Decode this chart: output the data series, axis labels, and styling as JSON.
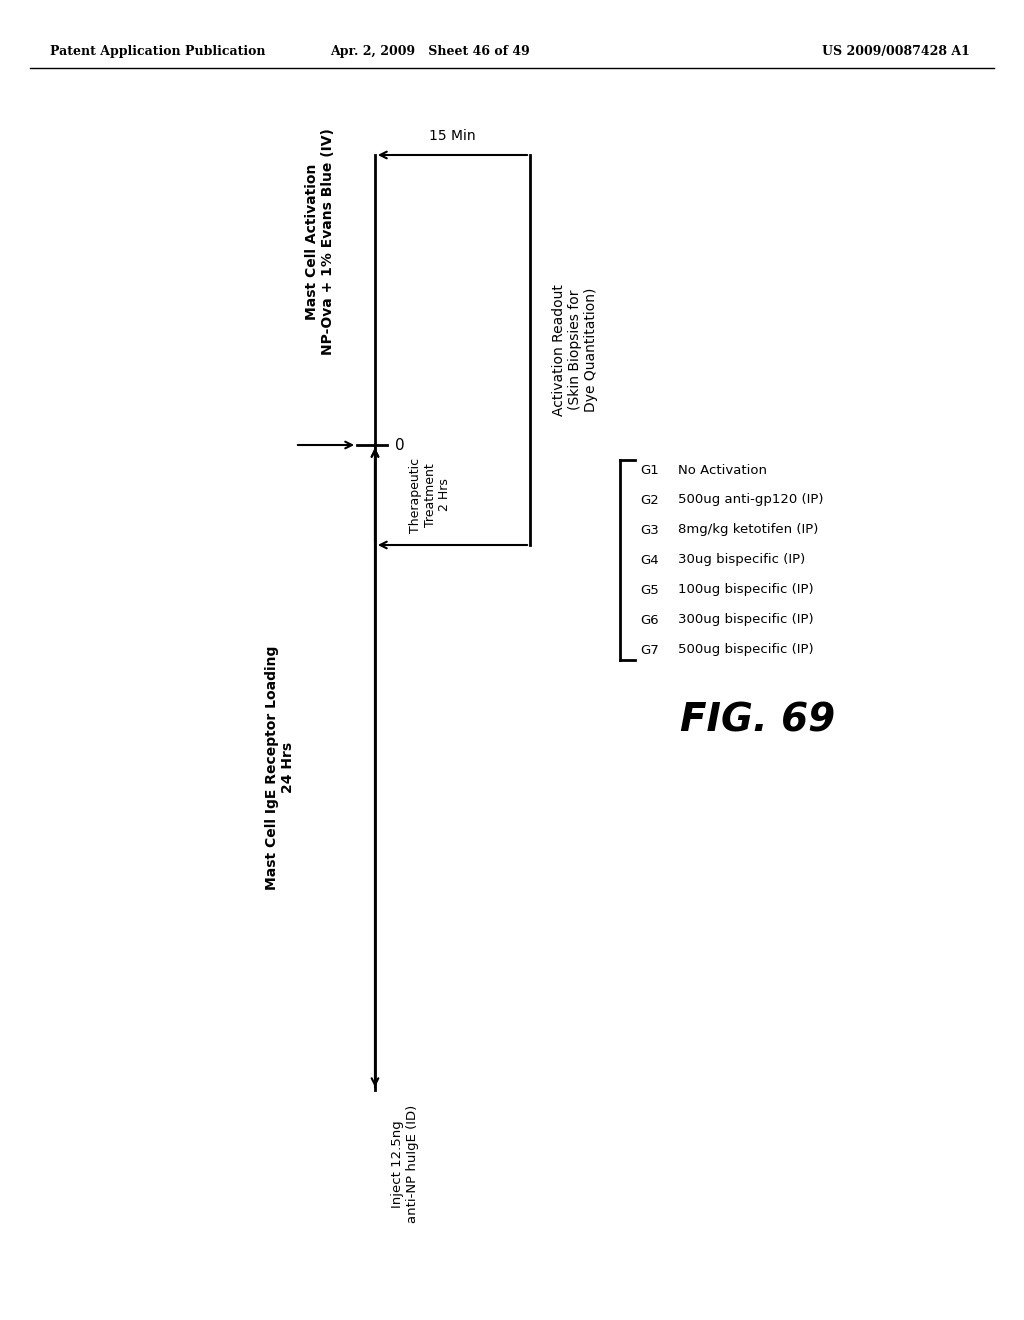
{
  "header_left": "Patent Application Publication",
  "header_mid": "Apr. 2, 2009   Sheet 46 of 49",
  "header_right": "US 2009/0087428 A1",
  "fig_label": "FIG. 69",
  "timeline_label": "0",
  "label_mast_cell_loading": "Mast Cell IgE Receptor Loading\n24 Hrs",
  "label_mast_cell_activation_line1": "Mast Cell Activation",
  "label_mast_cell_activation_line2": "NP-Ova + 1% Evans Blue (IV)",
  "label_15min": "15 Min",
  "label_therapeutic_line1": "Therapeutic",
  "label_therapeutic_line2": "Treatment",
  "label_therapeutic_line3": "2 Hrs",
  "label_activation_readout_line1": "Activation Readout",
  "label_activation_readout_line2": "(Skin Biopsies for",
  "label_activation_readout_line3": "Dye Quantitation)",
  "label_inject_line1": "Inject 12.5ng",
  "label_inject_line2": "anti-NP huIgE (ID)",
  "group_labels": [
    "G1",
    "G2",
    "G3",
    "G4",
    "G5",
    "G6",
    "G7"
  ],
  "group_descs": [
    "No Activation",
    "500ug anti-gp120 (IP)",
    "8mg/kg ketotifen (IP)",
    "30ug bispecific (IP)",
    "100ug bispecific (IP)",
    "300ug bispecific (IP)",
    "500ug bispecific (IP)"
  ],
  "bg_color": "#ffffff",
  "text_color": "#000000",
  "line_color": "#000000"
}
